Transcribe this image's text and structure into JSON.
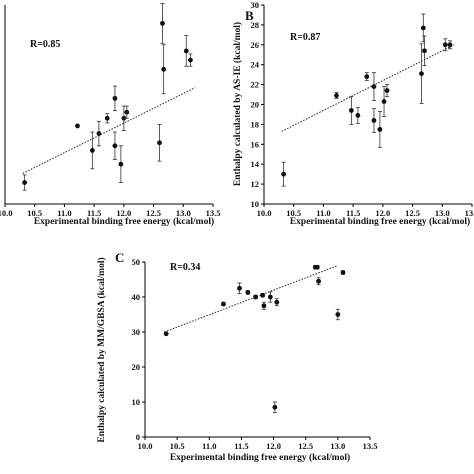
{
  "chart_data": [
    {
      "type": "scatter",
      "panel_label": "",
      "annotation": "R=0.85",
      "xlabel": "Experimental binding free energy (kcal/mol)",
      "ylabel": "",
      "xlim": [
        10.0,
        13.5
      ],
      "xticks": [
        "10.0",
        "10.5",
        "11.0",
        "11.5",
        "12.0",
        "12.5",
        "13.0",
        "13.5"
      ],
      "grid": false,
      "trendline": {
        "style": "dotted",
        "x": [
          10.3,
          13.2
        ],
        "y": [
          5.0,
          33.0
        ]
      },
      "points": [
        {
          "x": 10.33,
          "y": 2.0,
          "err": 2.5
        },
        {
          "x": 11.22,
          "y": 20.5,
          "err": 0
        },
        {
          "x": 11.47,
          "y": 12.5,
          "err": 6.0
        },
        {
          "x": 11.58,
          "y": 18.0,
          "err": 4.0
        },
        {
          "x": 11.72,
          "y": 23.0,
          "err": 1.5
        },
        {
          "x": 11.85,
          "y": 14.0,
          "err": 4.5
        },
        {
          "x": 11.85,
          "y": 29.5,
          "err": 4.0
        },
        {
          "x": 11.95,
          "y": 8.0,
          "err": 6.0
        },
        {
          "x": 12.0,
          "y": 23.0,
          "err": 4.0
        },
        {
          "x": 12.05,
          "y": 25.0,
          "err": 2.0
        },
        {
          "x": 12.6,
          "y": 15.0,
          "err": 6.0
        },
        {
          "x": 12.65,
          "y": 54.0,
          "err": 6.5
        },
        {
          "x": 12.67,
          "y": 39.0,
          "err": 8.0
        },
        {
          "x": 13.05,
          "y": 45.0,
          "err": 5.0
        },
        {
          "x": 13.12,
          "y": 42.0,
          "err": 2.0
        }
      ]
    },
    {
      "type": "scatter",
      "panel_label": "B",
      "annotation": "R=0.87",
      "xlabel": "Experimental binding free energy (kcal/mol)",
      "ylabel": "Enthalpy calculated by AS-IE (kcal/mol)",
      "xlim": [
        10.0,
        13.5
      ],
      "ylim": [
        10,
        30
      ],
      "xticks": [
        "10.0",
        "10.5",
        "11.0",
        "11.5",
        "12.0",
        "12.5",
        "13.0",
        "13.5"
      ],
      "yticks": [
        "10",
        "12",
        "14",
        "16",
        "18",
        "20",
        "22",
        "24",
        "26",
        "28",
        "30"
      ],
      "grid": false,
      "trendline": {
        "style": "dotted",
        "x": [
          10.3,
          13.2
        ],
        "y": [
          17.3,
          26.0
        ]
      },
      "points": [
        {
          "x": 10.33,
          "y": 13.0,
          "err": 1.2
        },
        {
          "x": 11.22,
          "y": 20.9,
          "err": 0.3
        },
        {
          "x": 11.47,
          "y": 19.4,
          "err": 1.4
        },
        {
          "x": 11.58,
          "y": 18.9,
          "err": 0.8
        },
        {
          "x": 11.73,
          "y": 22.8,
          "err": 0.4
        },
        {
          "x": 11.85,
          "y": 18.4,
          "err": 1.2
        },
        {
          "x": 11.85,
          "y": 21.8,
          "err": 1.4
        },
        {
          "x": 11.95,
          "y": 17.5,
          "err": 1.8
        },
        {
          "x": 12.02,
          "y": 20.3,
          "err": 1.5
        },
        {
          "x": 12.07,
          "y": 21.4,
          "err": 0.6
        },
        {
          "x": 12.65,
          "y": 23.1,
          "err": 3.0
        },
        {
          "x": 12.68,
          "y": 27.7,
          "err": 1.4
        },
        {
          "x": 12.7,
          "y": 25.4,
          "err": 1.5
        },
        {
          "x": 13.05,
          "y": 26.0,
          "err": 0.6
        },
        {
          "x": 13.13,
          "y": 26.0,
          "err": 0.4
        }
      ]
    },
    {
      "type": "scatter",
      "panel_label": "C",
      "annotation": "R=0.34",
      "xlabel": "Experimental binding free energy (kcal/mol)",
      "ylabel": "Enthalpy calculated by MM/GBSA (kcal/mol)",
      "xlim": [
        10.0,
        13.5
      ],
      "ylim": [
        0,
        50
      ],
      "xticks": [
        "10.0",
        "10.5",
        "11.0",
        "11.5",
        "12.0",
        "12.5",
        "13.0",
        "13.5"
      ],
      "yticks": [
        "0",
        "10",
        "20",
        "30",
        "40",
        "50"
      ],
      "grid": false,
      "trendline": {
        "style": "dotted",
        "x": [
          10.3,
          13.0
        ],
        "y": [
          30.0,
          49.0
        ]
      },
      "points": [
        {
          "x": 10.33,
          "y": 29.5,
          "err": 0
        },
        {
          "x": 11.22,
          "y": 38.0,
          "err": 0.5
        },
        {
          "x": 11.47,
          "y": 42.5,
          "err": 1.5
        },
        {
          "x": 11.6,
          "y": 41.3,
          "err": 0.5
        },
        {
          "x": 11.72,
          "y": 40.0,
          "err": 0.5
        },
        {
          "x": 11.83,
          "y": 40.5,
          "err": 0.5
        },
        {
          "x": 11.85,
          "y": 37.5,
          "err": 1.0
        },
        {
          "x": 11.95,
          "y": 40.0,
          "err": 1.5
        },
        {
          "x": 12.05,
          "y": 38.5,
          "err": 1.0
        },
        {
          "x": 12.02,
          "y": 8.5,
          "err": 1.5
        },
        {
          "x": 12.65,
          "y": 48.5,
          "err": 0.5
        },
        {
          "x": 12.68,
          "y": 48.5,
          "err": 0.5
        },
        {
          "x": 12.7,
          "y": 44.5,
          "err": 1.0
        },
        {
          "x": 13.0,
          "y": 35.0,
          "err": 1.5
        },
        {
          "x": 13.08,
          "y": 47.0,
          "err": 0.5
        }
      ]
    }
  ]
}
